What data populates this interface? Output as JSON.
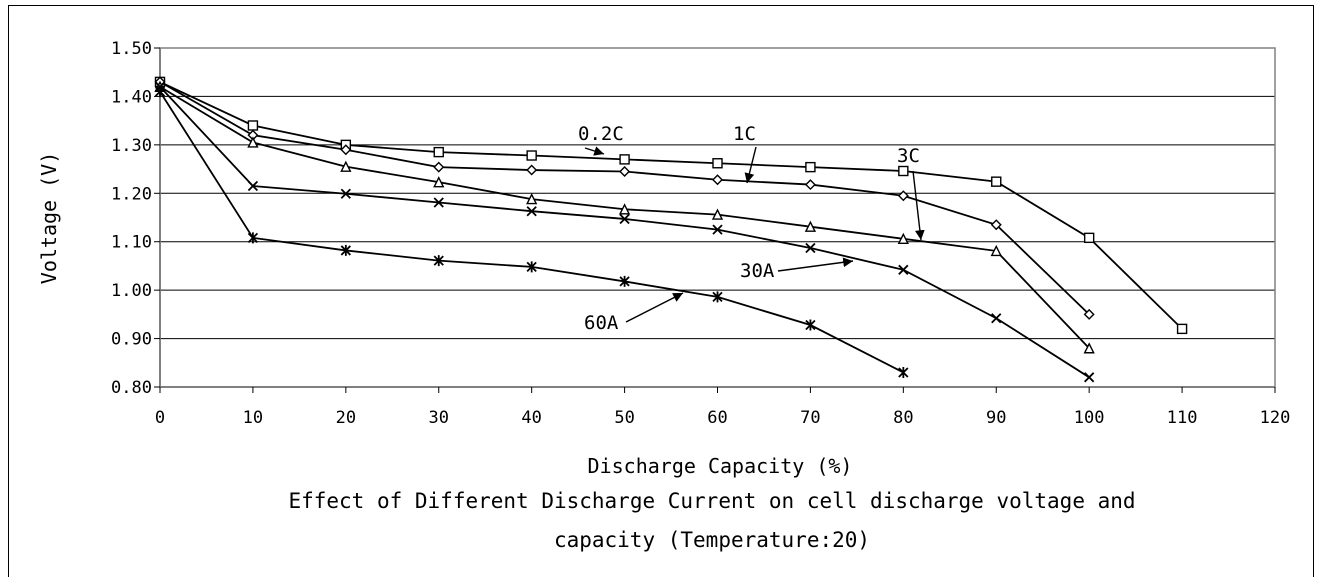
{
  "chart_data": {
    "type": "line",
    "title": "",
    "caption_lines": [
      "Effect of Different Discharge Current on cell discharge voltage and",
      "capacity (Temperature:20)"
    ],
    "xlabel": "Discharge Capacity (%)",
    "ylabel": "Voltage (V)",
    "xlim": [
      0,
      120
    ],
    "ylim": [
      0.8,
      1.5
    ],
    "x_ticks": [
      "0",
      "10",
      "20",
      "30",
      "40",
      "50",
      "60",
      "70",
      "80",
      "90",
      "100",
      "110",
      "120"
    ],
    "y_ticks": [
      "1.50",
      "1.40",
      "1.30",
      "1.20",
      "1.10",
      "1.00",
      "0.90",
      "0.80"
    ],
    "grid": "horizontal",
    "series": [
      {
        "name": "0.2C",
        "marker": "square",
        "x": [
          0,
          10,
          20,
          30,
          40,
          50,
          60,
          70,
          80,
          90,
          100,
          110
        ],
        "y": [
          1.43,
          1.34,
          1.3,
          1.285,
          1.278,
          1.27,
          1.262,
          1.254,
          1.246,
          1.224,
          1.108,
          0.92
        ]
      },
      {
        "name": "1C",
        "marker": "diamond",
        "x": [
          0,
          10,
          20,
          30,
          40,
          50,
          60,
          70,
          80,
          90,
          100
        ],
        "y": [
          1.43,
          1.32,
          1.29,
          1.254,
          1.248,
          1.245,
          1.228,
          1.218,
          1.195,
          1.135,
          0.95
        ]
      },
      {
        "name": "3C",
        "marker": "triangle",
        "x": [
          0,
          10,
          20,
          30,
          40,
          50,
          60,
          70,
          80,
          90,
          100
        ],
        "y": [
          1.42,
          1.305,
          1.255,
          1.223,
          1.188,
          1.167,
          1.156,
          1.131,
          1.106,
          1.081,
          0.88
        ]
      },
      {
        "name": "30A",
        "marker": "x",
        "x": [
          0,
          10,
          20,
          30,
          40,
          50,
          60,
          70,
          80,
          90,
          100
        ],
        "y": [
          1.42,
          1.215,
          1.199,
          1.181,
          1.163,
          1.147,
          1.125,
          1.087,
          1.042,
          0.942,
          0.82
        ]
      },
      {
        "name": "60A",
        "marker": "star",
        "x": [
          0,
          10,
          20,
          30,
          40,
          50,
          60,
          70,
          80
        ],
        "y": [
          1.41,
          1.108,
          1.082,
          1.061,
          1.048,
          1.018,
          0.986,
          0.928,
          0.83
        ]
      }
    ],
    "annotations": [
      {
        "text": "0.2C",
        "target_series": "0.2C"
      },
      {
        "text": "1C",
        "target_series": "1C"
      },
      {
        "text": "3C",
        "target_series": "3C"
      },
      {
        "text": "30A",
        "target_series": "30A"
      },
      {
        "text": "60A",
        "target_series": "60A"
      }
    ],
    "line_color": "#000000",
    "grid_color": "#000000",
    "plot_border_color": "#808080"
  }
}
